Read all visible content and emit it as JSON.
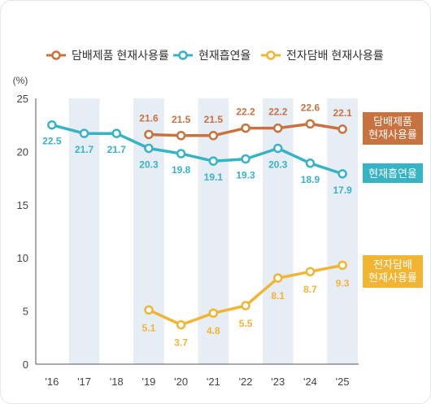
{
  "chart_data": {
    "type": "line",
    "unit": "(%)",
    "categories": [
      "'16",
      "'17",
      "'18",
      "'19",
      "'20",
      "'21",
      "'22",
      "'23",
      "'24",
      "'25"
    ],
    "ylim": [
      0,
      25
    ],
    "yticks": [
      "0",
      "5",
      "10",
      "15",
      "20",
      "25"
    ],
    "legend_position": "top",
    "series": [
      {
        "name": "담배제품 현재사용률",
        "side_label": [
          "담배제품",
          "현재사용률"
        ],
        "color": "#c8733f",
        "values": [
          null,
          null,
          null,
          21.6,
          21.5,
          21.5,
          22.2,
          22.2,
          22.6,
          22.1
        ],
        "labels": [
          null,
          null,
          null,
          "21.6",
          "21.5",
          "21.5",
          "22.2",
          "22.2",
          "22.6",
          "22.1"
        ]
      },
      {
        "name": "현재흡연율",
        "side_label": [
          "현재흡연율"
        ],
        "color": "#37b3c6",
        "values": [
          22.5,
          21.7,
          21.7,
          20.3,
          19.8,
          19.1,
          19.3,
          20.3,
          18.9,
          17.9
        ],
        "labels": [
          "22.5",
          "21.7",
          "21.7",
          "20.3",
          "19.8",
          "19.1",
          "19.3",
          "20.3",
          "18.9",
          "17.9"
        ]
      },
      {
        "name": "전자담배 현재사용률",
        "side_label": [
          "전자담배",
          "현재사용률"
        ],
        "color": "#f2b533",
        "values": [
          null,
          null,
          null,
          5.1,
          3.7,
          4.8,
          5.5,
          8.1,
          8.7,
          9.3
        ],
        "labels": [
          null,
          null,
          null,
          "5.1",
          "3.7",
          "4.8",
          "5.5",
          "8.1",
          "8.7",
          "9.3"
        ]
      }
    ]
  }
}
